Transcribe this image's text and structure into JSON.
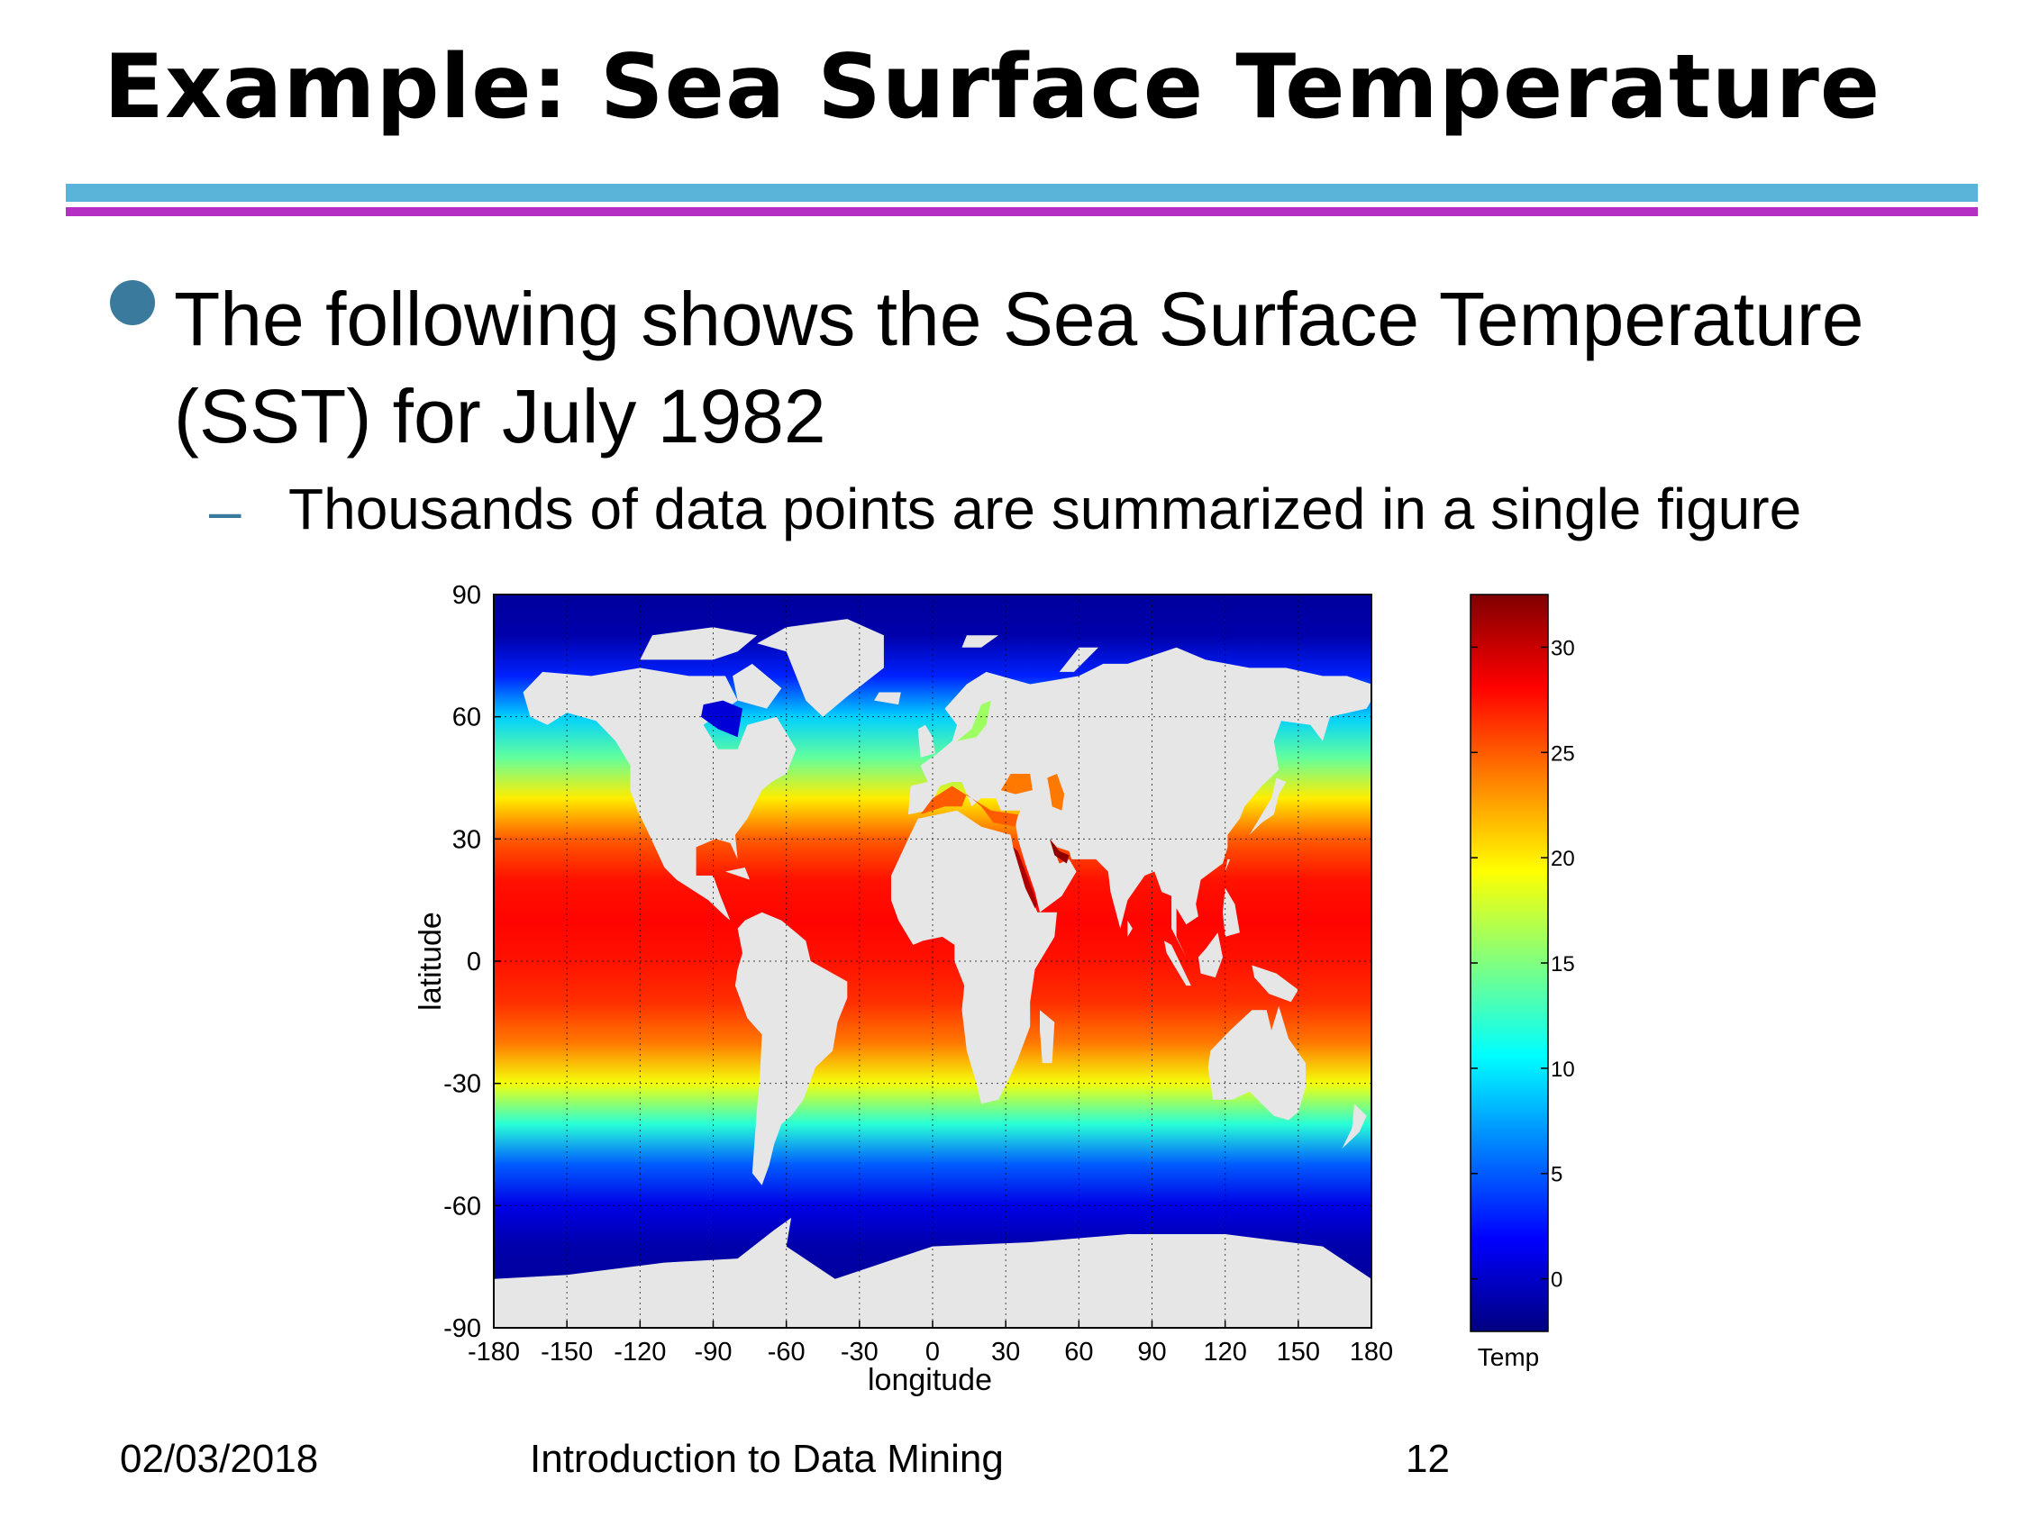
{
  "slide": {
    "title": "Example: Sea Surface Temperature",
    "bullet": "The following shows the Sea Surface Temperature (SST) for July 1982",
    "sub_bullet": "Thousands of data points are summarized in a single figure",
    "sub_bullet_marker": "–",
    "footer_date": "02/03/2018",
    "footer_course": "Introduction to Data Mining",
    "footer_page": "12"
  },
  "colors": {
    "rule_top": "#5ab3d8",
    "rule_bottom": "#b52fc4",
    "bullet": "#3a7a9c",
    "land": "#e6e6e6"
  },
  "chart_data": {
    "type": "heatmap",
    "title": "",
    "xlabel": "longitude",
    "ylabel": "latitude",
    "xlim": [
      -180,
      180
    ],
    "ylim": [
      -90,
      90
    ],
    "xticks": [
      -180,
      -150,
      -120,
      -90,
      -60,
      -30,
      0,
      30,
      60,
      90,
      120,
      150,
      180
    ],
    "yticks": [
      90,
      60,
      30,
      0,
      -30,
      -60,
      -90
    ],
    "grid": true,
    "colormap": "jet",
    "colorbar": {
      "label": "Temp",
      "range": [
        -2.5,
        32.5
      ],
      "ticks": [
        0,
        5,
        10,
        15,
        20,
        25,
        30
      ]
    },
    "zonal_profile": {
      "latitude": [
        90,
        80,
        70,
        60,
        50,
        40,
        30,
        20,
        10,
        0,
        -10,
        -20,
        -30,
        -40,
        -50,
        -60,
        -70,
        -80,
        -90
      ],
      "temperature": [
        -1.5,
        -1,
        3,
        9,
        14,
        20,
        25,
        27.5,
        28,
        27.5,
        26.5,
        24,
        19,
        12,
        5,
        1,
        -1,
        -1.5,
        -1.5
      ]
    }
  }
}
